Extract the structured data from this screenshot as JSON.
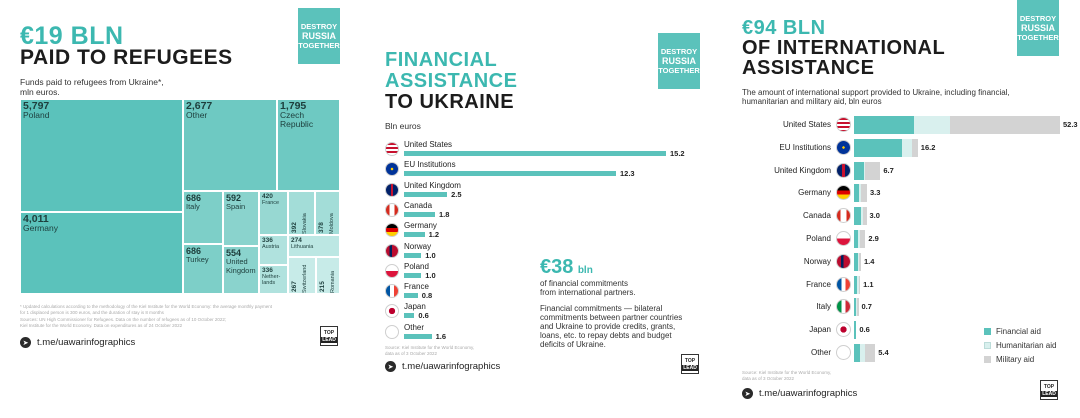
{
  "panel1": {
    "headline_amount": "€19 BLN",
    "headline_text": "PAID TO REFUGEES",
    "caption": [
      "Funds paid to refugees from Ukraine*,",
      "mln euros."
    ],
    "badge": [
      "DESTROY",
      "RUSSIA",
      "TOGETHER"
    ],
    "footnote": [
      "* Updated calculations according to the methodology of the Kiel Institute for the World Economy: the average monthly payment",
      "for 1 displaced person is 300 euros, and the duration of stay is 8 months",
      "Sources: UN High Commissioner for Refugees. Data on the number of refugees as of 10 October 2022;",
      "Kiel Institute for the World Economy. Data on expenditures as of 24 October 2022"
    ],
    "telegram": "t.me/uawarinfographics",
    "logo": [
      "TOP",
      "LEAD"
    ],
    "accent": "#5bc2bb"
  },
  "panel2": {
    "headline_line1": "FINANCIAL",
    "headline_line2": "ASSISTANCE",
    "headline_line3": "TO UKRAINE",
    "unit_label": "Bln euros",
    "badge": [
      "DESTROY",
      "RUSSIA",
      "TOGETHER"
    ],
    "callout_amount": "€38",
    "callout_unit": "bln",
    "callout_line1": "of financial commitments",
    "callout_line2": "from international partners.",
    "explanation": [
      "Financial commitments — bilateral",
      "commitments between partner countries",
      "and Ukraine to provide credits, grants,",
      "loans, etc. to repay debts and budget",
      "deficits of Ukraine."
    ],
    "source": [
      "Source: Kiel Institute for the World Economy,",
      "data as of 3 October 2022"
    ],
    "telegram": "t.me/uawarinfographics",
    "logo": [
      "TOP",
      "LEAD"
    ]
  },
  "panel3": {
    "headline_line1": "€94 BLN",
    "headline_line2": "OF INTERNATIONAL",
    "headline_line3": "ASSISTANCE",
    "caption": [
      "The amount of international support provided to Ukraine, including financial,",
      "humanitarian and military aid, bln euros"
    ],
    "badge": [
      "DESTROY",
      "RUSSIA",
      "TOGETHER"
    ],
    "source": [
      "Source: Kiel Institute for the World Economy,",
      "data as of 3 October 2022"
    ],
    "telegram": "t.me/uawarinfographics",
    "logo": [
      "TOP",
      "LEAD"
    ],
    "legend": [
      "Financial aid",
      "Humanitarian aid",
      "Military aid"
    ],
    "colors": {
      "financial": "#5bc2bb",
      "humanitarian": "#d9f0ee",
      "military": "#d3d3d3"
    }
  },
  "chart_data": [
    {
      "type": "treemap",
      "title": "Funds paid to refugees from Ukraine*, mln euros.",
      "items": [
        {
          "label": "Poland",
          "value": 5797,
          "display": "5,797"
        },
        {
          "label": "Germany",
          "value": 4011,
          "display": "4,011"
        },
        {
          "label": "Other",
          "value": 2677,
          "display": "2,677"
        },
        {
          "label": "Czech Republic",
          "value": 1795,
          "display": "1,795"
        },
        {
          "label": "Italy",
          "value": 686,
          "display": "686"
        },
        {
          "label": "Turkey",
          "value": 686,
          "display": "686"
        },
        {
          "label": "Spain",
          "value": 592,
          "display": "592"
        },
        {
          "label": "United Kingdom",
          "value": 554,
          "display": "554"
        },
        {
          "label": "France",
          "value": 420,
          "display": "420"
        },
        {
          "label": "Slovakia",
          "value": 392,
          "display": "392"
        },
        {
          "label": "Moldova",
          "value": 378,
          "display": "378"
        },
        {
          "label": "Austria",
          "value": 336,
          "display": "336"
        },
        {
          "label": "Nether-lands",
          "value": 336,
          "display": "336"
        },
        {
          "label": "Lithuania",
          "value": 274,
          "display": "274"
        },
        {
          "label": "Switzerland",
          "value": 267,
          "display": "267"
        },
        {
          "label": "Romania",
          "value": 215,
          "display": "215"
        }
      ]
    },
    {
      "type": "bar",
      "title": "Bln euros",
      "categories": [
        "United States",
        "EU Institutions",
        "United Kingdom",
        "Canada",
        "Germany",
        "Norway",
        "Poland",
        "France",
        "Japan",
        "Other"
      ],
      "values": [
        15.2,
        12.3,
        2.5,
        1.8,
        1.2,
        1.0,
        1.0,
        0.8,
        0.6,
        1.6
      ],
      "xlim": [
        0,
        15.2
      ]
    },
    {
      "type": "bar",
      "stacked": true,
      "title": "The amount of international support provided to Ukraine, including financial, humanitarian and military aid, bln euros",
      "categories": [
        "United States",
        "EU Institutions",
        "United Kingdom",
        "Germany",
        "Canada",
        "Poland",
        "Norway",
        "France",
        "Italy",
        "Japan",
        "Other"
      ],
      "totals": [
        52.3,
        16.2,
        6.7,
        3.3,
        3.0,
        2.9,
        1.4,
        1.1,
        0.7,
        0.6,
        5.4
      ],
      "series": [
        {
          "name": "Financial aid",
          "values": [
            15.2,
            12.3,
            2.5,
            1.2,
            1.8,
            1.0,
            1.0,
            0.8,
            0.3,
            0.6,
            1.6
          ]
        },
        {
          "name": "Humanitarian aid",
          "values": [
            9.2,
            2.5,
            0.4,
            0.6,
            0.2,
            0.4,
            0.2,
            0.1,
            0.1,
            0.0,
            1.3
          ]
        },
        {
          "name": "Military aid",
          "values": [
            27.9,
            1.4,
            3.8,
            1.5,
            1.0,
            1.5,
            0.2,
            0.2,
            0.3,
            0.0,
            2.5
          ]
        }
      ],
      "legend_position": "bottom-right"
    }
  ]
}
